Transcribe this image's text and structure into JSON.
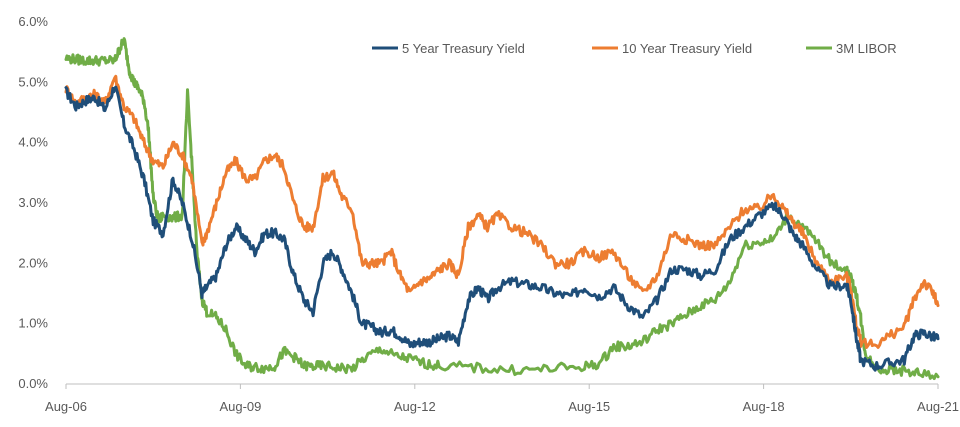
{
  "chart_data": {
    "type": "line",
    "title": "",
    "xlabel": "",
    "ylabel": "",
    "ylim": [
      0,
      6
    ],
    "y_ticks": [
      "0.0%",
      "1.0%",
      "2.0%",
      "3.0%",
      "4.0%",
      "5.0%",
      "6.0%"
    ],
    "x_ticks": [
      "Aug-06",
      "Aug-09",
      "Aug-12",
      "Aug-15",
      "Aug-18",
      "Aug-21"
    ],
    "x_tick_years": [
      2006.58,
      2009.58,
      2012.58,
      2015.58,
      2018.58,
      2021.58
    ],
    "xlim": [
      2006.58,
      2021.58
    ],
    "grid": false,
    "legend_position": "top-right",
    "series": [
      {
        "name": "5 Year Treasury Yield",
        "color": "#1f4e79",
        "x": [
          2006.58,
          2006.75,
          2006.92,
          2007.08,
          2007.25,
          2007.42,
          2007.58,
          2007.75,
          2007.92,
          2008.08,
          2008.25,
          2008.42,
          2008.58,
          2008.75,
          2008.92,
          2009.0,
          2009.17,
          2009.33,
          2009.5,
          2009.67,
          2009.83,
          2010.0,
          2010.17,
          2010.33,
          2010.5,
          2010.67,
          2010.83,
          2011.0,
          2011.17,
          2011.33,
          2011.5,
          2011.67,
          2011.83,
          2012.0,
          2012.17,
          2012.33,
          2012.5,
          2012.67,
          2012.83,
          2013.0,
          2013.17,
          2013.33,
          2013.5,
          2013.67,
          2013.83,
          2014.0,
          2014.25,
          2014.5,
          2014.75,
          2015.0,
          2015.25,
          2015.5,
          2015.75,
          2016.0,
          2016.25,
          2016.5,
          2016.75,
          2017.0,
          2017.25,
          2017.5,
          2017.75,
          2018.0,
          2018.25,
          2018.5,
          2018.75,
          2018.92,
          2019.08,
          2019.25,
          2019.5,
          2019.75,
          2020.0,
          2020.08,
          2020.17,
          2020.25,
          2020.5,
          2020.75,
          2021.0,
          2021.17,
          2021.33,
          2021.5,
          2021.58
        ],
        "values": [
          4.85,
          4.6,
          4.7,
          4.75,
          4.55,
          4.95,
          4.3,
          3.9,
          3.4,
          2.7,
          2.5,
          3.4,
          3.0,
          2.4,
          1.5,
          1.6,
          1.8,
          2.3,
          2.6,
          2.4,
          2.2,
          2.5,
          2.5,
          2.4,
          1.8,
          1.4,
          1.2,
          2.0,
          2.2,
          1.9,
          1.5,
          1.0,
          0.95,
          0.85,
          0.9,
          0.8,
          0.65,
          0.7,
          0.7,
          0.75,
          0.8,
          0.7,
          1.4,
          1.6,
          1.4,
          1.6,
          1.7,
          1.65,
          1.6,
          1.5,
          1.45,
          1.6,
          1.45,
          1.6,
          1.3,
          1.1,
          1.4,
          1.9,
          1.9,
          1.8,
          1.9,
          2.4,
          2.6,
          2.8,
          2.95,
          2.8,
          2.5,
          2.3,
          1.9,
          1.6,
          1.65,
          1.4,
          0.8,
          0.4,
          0.3,
          0.35,
          0.4,
          0.8,
          0.85,
          0.78,
          0.75
        ]
      },
      {
        "name": "10 Year Treasury Yield",
        "color": "#ed7d31",
        "x": [
          2006.58,
          2006.75,
          2006.92,
          2007.08,
          2007.25,
          2007.42,
          2007.58,
          2007.75,
          2007.92,
          2008.08,
          2008.25,
          2008.42,
          2008.58,
          2008.75,
          2008.92,
          2009.0,
          2009.17,
          2009.33,
          2009.5,
          2009.67,
          2009.83,
          2010.0,
          2010.17,
          2010.33,
          2010.5,
          2010.67,
          2010.83,
          2011.0,
          2011.17,
          2011.33,
          2011.5,
          2011.67,
          2011.83,
          2012.0,
          2012.17,
          2012.33,
          2012.5,
          2012.67,
          2012.83,
          2013.0,
          2013.17,
          2013.33,
          2013.5,
          2013.67,
          2013.83,
          2014.0,
          2014.25,
          2014.5,
          2014.75,
          2015.0,
          2015.25,
          2015.5,
          2015.75,
          2016.0,
          2016.25,
          2016.5,
          2016.75,
          2017.0,
          2017.25,
          2017.5,
          2017.75,
          2018.0,
          2018.25,
          2018.5,
          2018.75,
          2018.92,
          2019.08,
          2019.25,
          2019.5,
          2019.75,
          2020.0,
          2020.08,
          2020.17,
          2020.25,
          2020.5,
          2020.75,
          2021.0,
          2021.17,
          2021.33,
          2021.5,
          2021.58
        ],
        "values": [
          4.9,
          4.65,
          4.75,
          4.8,
          4.65,
          5.1,
          4.6,
          4.4,
          4.0,
          3.7,
          3.6,
          4.0,
          3.8,
          3.4,
          2.3,
          2.5,
          3.0,
          3.5,
          3.7,
          3.4,
          3.4,
          3.7,
          3.8,
          3.6,
          3.0,
          2.6,
          2.6,
          3.4,
          3.5,
          3.1,
          2.9,
          2.0,
          2.0,
          2.0,
          2.2,
          1.8,
          1.5,
          1.7,
          1.75,
          1.9,
          2.0,
          1.8,
          2.6,
          2.8,
          2.6,
          2.8,
          2.6,
          2.5,
          2.3,
          2.0,
          2.0,
          2.2,
          2.1,
          2.2,
          1.8,
          1.5,
          1.8,
          2.5,
          2.4,
          2.3,
          2.3,
          2.6,
          2.9,
          2.9,
          3.15,
          2.9,
          2.7,
          2.5,
          2.0,
          1.7,
          1.8,
          1.6,
          1.0,
          0.7,
          0.65,
          0.8,
          0.95,
          1.4,
          1.7,
          1.5,
          1.3
        ]
      },
      {
        "name": "3M LIBOR",
        "color": "#70ad47",
        "x": [
          2006.58,
          2006.75,
          2006.92,
          2007.08,
          2007.25,
          2007.42,
          2007.5,
          2007.58,
          2007.67,
          2007.75,
          2007.83,
          2007.92,
          2008.0,
          2008.08,
          2008.17,
          2008.25,
          2008.42,
          2008.58,
          2008.67,
          2008.75,
          2008.83,
          2008.92,
          2009.0,
          2009.17,
          2009.33,
          2009.5,
          2009.67,
          2009.83,
          2010.0,
          2010.17,
          2010.33,
          2010.5,
          2010.67,
          2010.83,
          2011.0,
          2011.25,
          2011.5,
          2011.75,
          2012.0,
          2012.25,
          2012.5,
          2012.75,
          2013.0,
          2013.5,
          2014.0,
          2014.5,
          2015.0,
          2015.5,
          2015.75,
          2016.0,
          2016.25,
          2016.5,
          2016.75,
          2017.0,
          2017.25,
          2017.5,
          2017.75,
          2018.0,
          2018.25,
          2018.5,
          2018.75,
          2019.0,
          2019.25,
          2019.5,
          2019.75,
          2020.0,
          2020.08,
          2020.17,
          2020.25,
          2020.33,
          2020.5,
          2020.75,
          2021.0,
          2021.25,
          2021.58
        ],
        "values": [
          5.4,
          5.38,
          5.36,
          5.36,
          5.36,
          5.36,
          5.55,
          5.7,
          5.2,
          5.0,
          4.9,
          4.7,
          4.2,
          3.1,
          2.7,
          2.8,
          2.75,
          2.8,
          4.8,
          3.6,
          2.2,
          1.4,
          1.2,
          1.1,
          0.9,
          0.5,
          0.3,
          0.28,
          0.26,
          0.3,
          0.54,
          0.45,
          0.3,
          0.29,
          0.3,
          0.27,
          0.25,
          0.45,
          0.58,
          0.46,
          0.42,
          0.34,
          0.3,
          0.28,
          0.24,
          0.23,
          0.26,
          0.29,
          0.33,
          0.62,
          0.63,
          0.7,
          0.9,
          1.0,
          1.15,
          1.3,
          1.4,
          1.7,
          2.3,
          2.35,
          2.4,
          2.8,
          2.6,
          2.35,
          2.0,
          1.9,
          1.75,
          1.5,
          1.1,
          0.5,
          0.28,
          0.23,
          0.22,
          0.18,
          0.12
        ]
      }
    ]
  }
}
